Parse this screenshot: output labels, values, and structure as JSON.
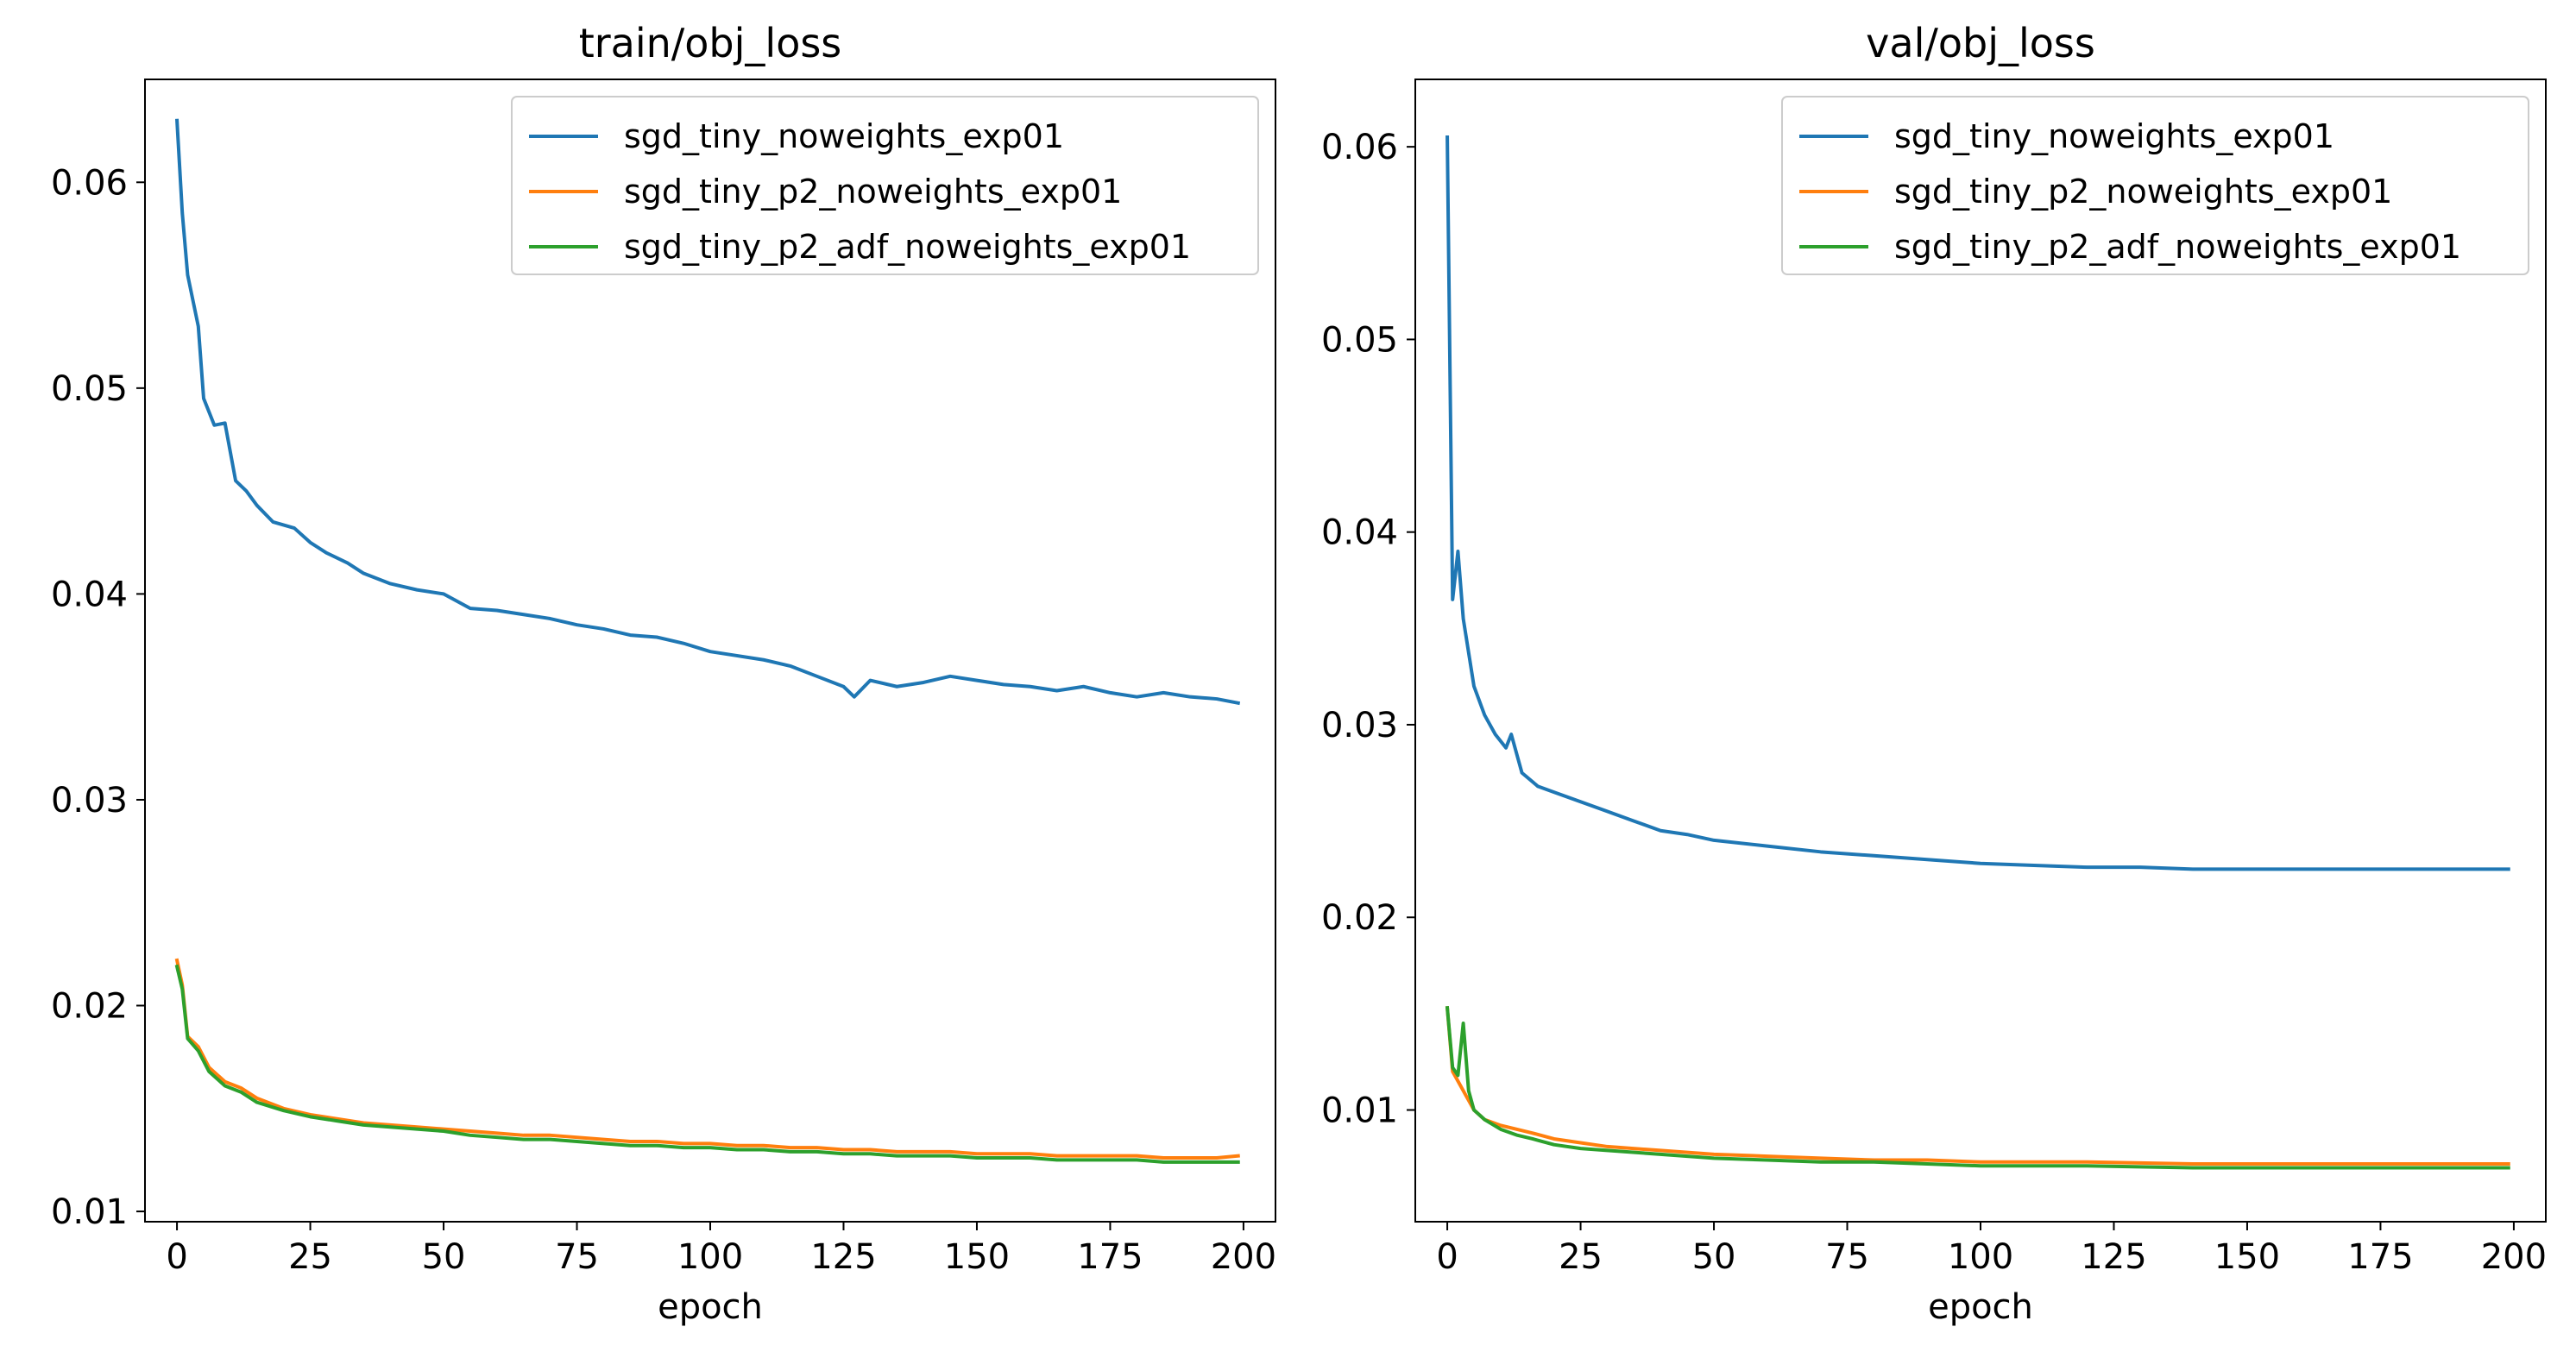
{
  "chart_data": [
    {
      "type": "line",
      "title": "train/obj_loss",
      "xlabel": "epoch",
      "ylabel": "",
      "xlim": [
        -6,
        206
      ],
      "ylim": [
        0.0095,
        0.065
      ],
      "xticks": [
        0,
        25,
        50,
        75,
        100,
        125,
        150,
        175,
        200
      ],
      "xtick_labels": [
        "0",
        "25",
        "50",
        "75",
        "100",
        "125",
        "150",
        "175",
        "200"
      ],
      "yticks": [
        0.01,
        0.02,
        0.03,
        0.04,
        0.05,
        0.06
      ],
      "ytick_labels": [
        "0.01",
        "0.02",
        "0.03",
        "0.04",
        "0.05",
        "0.06"
      ],
      "legend_position": "top-right",
      "series": [
        {
          "name": "sgd_tiny_noweights_exp01",
          "color": "#1f77b4",
          "points": [
            [
              0,
              0.063
            ],
            [
              1,
              0.0585
            ],
            [
              2,
              0.0555
            ],
            [
              4,
              0.053
            ],
            [
              5,
              0.0495
            ],
            [
              7,
              0.0482
            ],
            [
              9,
              0.0483
            ],
            [
              11,
              0.0455
            ],
            [
              13,
              0.045
            ],
            [
              15,
              0.0443
            ],
            [
              18,
              0.0435
            ],
            [
              22,
              0.0432
            ],
            [
              25,
              0.0425
            ],
            [
              28,
              0.042
            ],
            [
              32,
              0.0415
            ],
            [
              35,
              0.041
            ],
            [
              40,
              0.0405
            ],
            [
              45,
              0.0402
            ],
            [
              50,
              0.04
            ],
            [
              55,
              0.0393
            ],
            [
              60,
              0.0392
            ],
            [
              65,
              0.039
            ],
            [
              70,
              0.0388
            ],
            [
              75,
              0.0385
            ],
            [
              80,
              0.0383
            ],
            [
              85,
              0.038
            ],
            [
              90,
              0.0379
            ],
            [
              95,
              0.0376
            ],
            [
              100,
              0.0372
            ],
            [
              105,
              0.037
            ],
            [
              110,
              0.0368
            ],
            [
              115,
              0.0365
            ],
            [
              120,
              0.036
            ],
            [
              125,
              0.0355
            ],
            [
              127,
              0.035
            ],
            [
              130,
              0.0358
            ],
            [
              135,
              0.0355
            ],
            [
              140,
              0.0357
            ],
            [
              145,
              0.036
            ],
            [
              150,
              0.0358
            ],
            [
              155,
              0.0356
            ],
            [
              160,
              0.0355
            ],
            [
              165,
              0.0353
            ],
            [
              170,
              0.0355
            ],
            [
              175,
              0.0352
            ],
            [
              180,
              0.035
            ],
            [
              185,
              0.0352
            ],
            [
              190,
              0.035
            ],
            [
              195,
              0.0349
            ],
            [
              199,
              0.0347
            ]
          ]
        },
        {
          "name": "sgd_tiny_p2_noweights_exp01",
          "color": "#ff7f0e",
          "points": [
            [
              0,
              0.0222
            ],
            [
              1,
              0.021
            ],
            [
              2,
              0.0185
            ],
            [
              4,
              0.018
            ],
            [
              6,
              0.017
            ],
            [
              9,
              0.0163
            ],
            [
              12,
              0.016
            ],
            [
              15,
              0.0155
            ],
            [
              20,
              0.015
            ],
            [
              25,
              0.0147
            ],
            [
              30,
              0.0145
            ],
            [
              35,
              0.0143
            ],
            [
              40,
              0.0142
            ],
            [
              45,
              0.0141
            ],
            [
              50,
              0.014
            ],
            [
              55,
              0.0139
            ],
            [
              60,
              0.0138
            ],
            [
              65,
              0.0137
            ],
            [
              70,
              0.0137
            ],
            [
              75,
              0.0136
            ],
            [
              80,
              0.0135
            ],
            [
              85,
              0.0134
            ],
            [
              90,
              0.0134
            ],
            [
              95,
              0.0133
            ],
            [
              100,
              0.0133
            ],
            [
              105,
              0.0132
            ],
            [
              110,
              0.0132
            ],
            [
              115,
              0.0131
            ],
            [
              120,
              0.0131
            ],
            [
              125,
              0.013
            ],
            [
              130,
              0.013
            ],
            [
              135,
              0.0129
            ],
            [
              140,
              0.0129
            ],
            [
              145,
              0.0129
            ],
            [
              150,
              0.0128
            ],
            [
              155,
              0.0128
            ],
            [
              160,
              0.0128
            ],
            [
              165,
              0.0127
            ],
            [
              170,
              0.0127
            ],
            [
              175,
              0.0127
            ],
            [
              180,
              0.0127
            ],
            [
              185,
              0.0126
            ],
            [
              190,
              0.0126
            ],
            [
              195,
              0.0126
            ],
            [
              199,
              0.0127
            ]
          ]
        },
        {
          "name": "sgd_tiny_p2_adf_noweights_exp01",
          "color": "#2ca02c",
          "points": [
            [
              0,
              0.0219
            ],
            [
              1,
              0.0208
            ],
            [
              2,
              0.0184
            ],
            [
              4,
              0.0178
            ],
            [
              6,
              0.0168
            ],
            [
              9,
              0.0161
            ],
            [
              12,
              0.0158
            ],
            [
              15,
              0.0153
            ],
            [
              20,
              0.0149
            ],
            [
              25,
              0.0146
            ],
            [
              30,
              0.0144
            ],
            [
              35,
              0.0142
            ],
            [
              40,
              0.0141
            ],
            [
              45,
              0.014
            ],
            [
              50,
              0.0139
            ],
            [
              55,
              0.0137
            ],
            [
              60,
              0.0136
            ],
            [
              65,
              0.0135
            ],
            [
              70,
              0.0135
            ],
            [
              75,
              0.0134
            ],
            [
              80,
              0.0133
            ],
            [
              85,
              0.0132
            ],
            [
              90,
              0.0132
            ],
            [
              95,
              0.0131
            ],
            [
              100,
              0.0131
            ],
            [
              105,
              0.013
            ],
            [
              110,
              0.013
            ],
            [
              115,
              0.0129
            ],
            [
              120,
              0.0129
            ],
            [
              125,
              0.0128
            ],
            [
              130,
              0.0128
            ],
            [
              135,
              0.0127
            ],
            [
              140,
              0.0127
            ],
            [
              145,
              0.0127
            ],
            [
              150,
              0.0126
            ],
            [
              155,
              0.0126
            ],
            [
              160,
              0.0126
            ],
            [
              165,
              0.0125
            ],
            [
              170,
              0.0125
            ],
            [
              175,
              0.0125
            ],
            [
              180,
              0.0125
            ],
            [
              185,
              0.0124
            ],
            [
              190,
              0.0124
            ],
            [
              195,
              0.0124
            ],
            [
              199,
              0.0124
            ]
          ]
        }
      ]
    },
    {
      "type": "line",
      "title": "val/obj_loss",
      "xlabel": "epoch",
      "ylabel": "",
      "xlim": [
        -6,
        206
      ],
      "ylim": [
        0.0042,
        0.0635
      ],
      "xticks": [
        0,
        25,
        50,
        75,
        100,
        125,
        150,
        175,
        200
      ],
      "xtick_labels": [
        "0",
        "25",
        "50",
        "75",
        "100",
        "125",
        "150",
        "175",
        "200"
      ],
      "yticks": [
        0.01,
        0.02,
        0.03,
        0.04,
        0.05,
        0.06
      ],
      "ytick_labels": [
        "0.01",
        "0.02",
        "0.03",
        "0.04",
        "0.05",
        "0.06"
      ],
      "legend_position": "top-right",
      "series": [
        {
          "name": "sgd_tiny_noweights_exp01",
          "color": "#1f77b4",
          "points": [
            [
              0,
              0.0605
            ],
            [
              1,
              0.0365
            ],
            [
              2,
              0.039
            ],
            [
              3,
              0.0355
            ],
            [
              5,
              0.032
            ],
            [
              7,
              0.0305
            ],
            [
              9,
              0.0295
            ],
            [
              11,
              0.0288
            ],
            [
              12,
              0.0295
            ],
            [
              14,
              0.0275
            ],
            [
              17,
              0.0268
            ],
            [
              20,
              0.0265
            ],
            [
              25,
              0.026
            ],
            [
              30,
              0.0255
            ],
            [
              35,
              0.025
            ],
            [
              40,
              0.0245
            ],
            [
              45,
              0.0243
            ],
            [
              50,
              0.024
            ],
            [
              60,
              0.0237
            ],
            [
              70,
              0.0234
            ],
            [
              80,
              0.0232
            ],
            [
              90,
              0.023
            ],
            [
              100,
              0.0228
            ],
            [
              110,
              0.0227
            ],
            [
              120,
              0.0226
            ],
            [
              130,
              0.0226
            ],
            [
              140,
              0.0225
            ],
            [
              150,
              0.0225
            ],
            [
              160,
              0.0225
            ],
            [
              170,
              0.0225
            ],
            [
              180,
              0.0225
            ],
            [
              190,
              0.0225
            ],
            [
              199,
              0.0225
            ]
          ]
        },
        {
          "name": "sgd_tiny_p2_noweights_exp01",
          "color": "#ff7f0e",
          "points": [
            [
              0,
              0.0153
            ],
            [
              1,
              0.012
            ],
            [
              2,
              0.0115
            ],
            [
              3,
              0.011
            ],
            [
              4,
              0.0105
            ],
            [
              5,
              0.01
            ],
            [
              7,
              0.0095
            ],
            [
              10,
              0.0092
            ],
            [
              13,
              0.009
            ],
            [
              16,
              0.0088
            ],
            [
              20,
              0.0085
            ],
            [
              25,
              0.0083
            ],
            [
              30,
              0.0081
            ],
            [
              40,
              0.0079
            ],
            [
              50,
              0.0077
            ],
            [
              60,
              0.0076
            ],
            [
              70,
              0.0075
            ],
            [
              80,
              0.0074
            ],
            [
              90,
              0.0074
            ],
            [
              100,
              0.0073
            ],
            [
              120,
              0.0073
            ],
            [
              140,
              0.0072
            ],
            [
              160,
              0.0072
            ],
            [
              180,
              0.0072
            ],
            [
              199,
              0.0072
            ]
          ]
        },
        {
          "name": "sgd_tiny_p2_adf_noweights_exp01",
          "color": "#2ca02c",
          "points": [
            [
              0,
              0.0153
            ],
            [
              1,
              0.0122
            ],
            [
              2,
              0.0118
            ],
            [
              3,
              0.0145
            ],
            [
              4,
              0.011
            ],
            [
              5,
              0.01
            ],
            [
              7,
              0.0095
            ],
            [
              10,
              0.009
            ],
            [
              13,
              0.0087
            ],
            [
              16,
              0.0085
            ],
            [
              20,
              0.0082
            ],
            [
              25,
              0.008
            ],
            [
              30,
              0.0079
            ],
            [
              40,
              0.0077
            ],
            [
              50,
              0.0075
            ],
            [
              60,
              0.0074
            ],
            [
              70,
              0.0073
            ],
            [
              80,
              0.0073
            ],
            [
              90,
              0.0072
            ],
            [
              100,
              0.0071
            ],
            [
              120,
              0.0071
            ],
            [
              140,
              0.007
            ],
            [
              160,
              0.007
            ],
            [
              180,
              0.007
            ],
            [
              199,
              0.007
            ]
          ]
        }
      ]
    }
  ]
}
